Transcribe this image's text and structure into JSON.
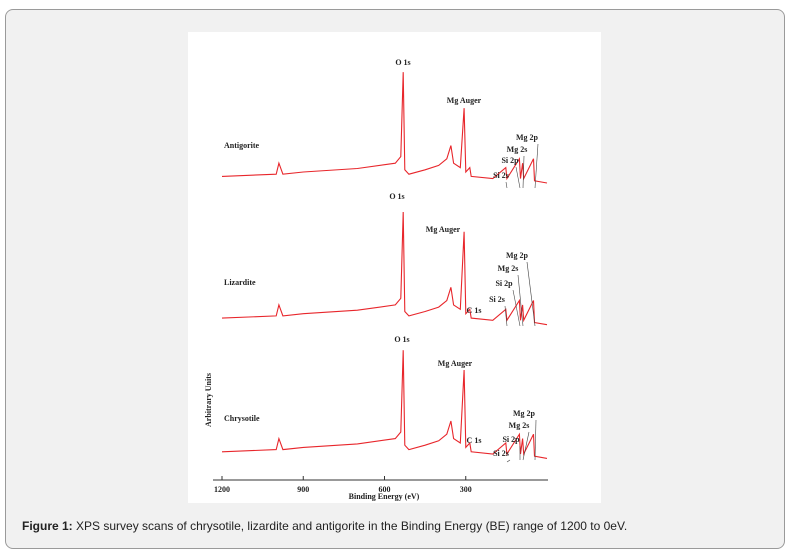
{
  "chart_data": {
    "type": "line",
    "xlabel": "Binding Energy (eV)",
    "ylabel": "Arbitrary Units",
    "xlim": [
      1200,
      0
    ],
    "xticks": [
      1200,
      900,
      600,
      300
    ],
    "ylim": [
      0,
      100
    ],
    "x": [
      1200,
      1000,
      990,
      975,
      900,
      700,
      560,
      540,
      531,
      525,
      510,
      450,
      400,
      370,
      355,
      345,
      320,
      306,
      300,
      285,
      280,
      200,
      152,
      148,
      102,
      98,
      90,
      86,
      50,
      46,
      0
    ],
    "series": [
      {
        "name": "Antigorite",
        "color": "#e8262b",
        "values": [
          69,
          69.5,
          72,
          69.5,
          70,
          70.8,
          72,
          73.5,
          92.7,
          70.5,
          69.5,
          70.5,
          71.5,
          73,
          76,
          72,
          71,
          84.5,
          70,
          71,
          69,
          68.5,
          71,
          68.5,
          73,
          68.5,
          72,
          68.5,
          73,
          68,
          67.5
        ],
        "annotations": [
          "O 1s",
          "Mg Auger",
          "Mg 2p",
          "Mg 2s",
          "Si 2p",
          "Si 2s"
        ]
      },
      {
        "name": "Lizardite",
        "color": "#e8262b",
        "values": [
          36.8,
          37.3,
          39.8,
          37.3,
          37.8,
          38.6,
          39.8,
          41.3,
          60.9,
          38.3,
          37.3,
          38.3,
          39.3,
          40.8,
          43.8,
          39.8,
          38.8,
          56.4,
          37.8,
          38.8,
          36.8,
          36.3,
          38.8,
          36.3,
          40.8,
          36.3,
          39.8,
          36.3,
          40.8,
          35.8,
          35.3
        ],
        "annotations": [
          "O 1s",
          "Mg Auger",
          "Mg 2p",
          "Mg 2s",
          "Si 2p",
          "Si 2s",
          "C 1s"
        ]
      },
      {
        "name": "Chrysotile",
        "color": "#e8262b",
        "values": [
          6.4,
          6.9,
          9.4,
          6.9,
          7.4,
          8.2,
          9.4,
          10.9,
          29.5,
          7.9,
          6.9,
          7.9,
          8.9,
          10.4,
          13.4,
          9.4,
          8.4,
          25,
          7.4,
          8.4,
          6.4,
          5.9,
          8.4,
          5.9,
          10.4,
          5.9,
          9.4,
          5.9,
          10.4,
          5.4,
          4.9
        ],
        "annotations": [
          "O 1s",
          "Mg Auger",
          "Mg 2p",
          "Mg 2s",
          "Si 2p",
          "Si 2s",
          "C 1s"
        ]
      }
    ]
  },
  "caption": {
    "label": "Figure 1:",
    "text": "XPS survey scans of chrysotile, lizardite and antigorite in the Binding Energy (BE) range of 1200 to 0eV."
  }
}
